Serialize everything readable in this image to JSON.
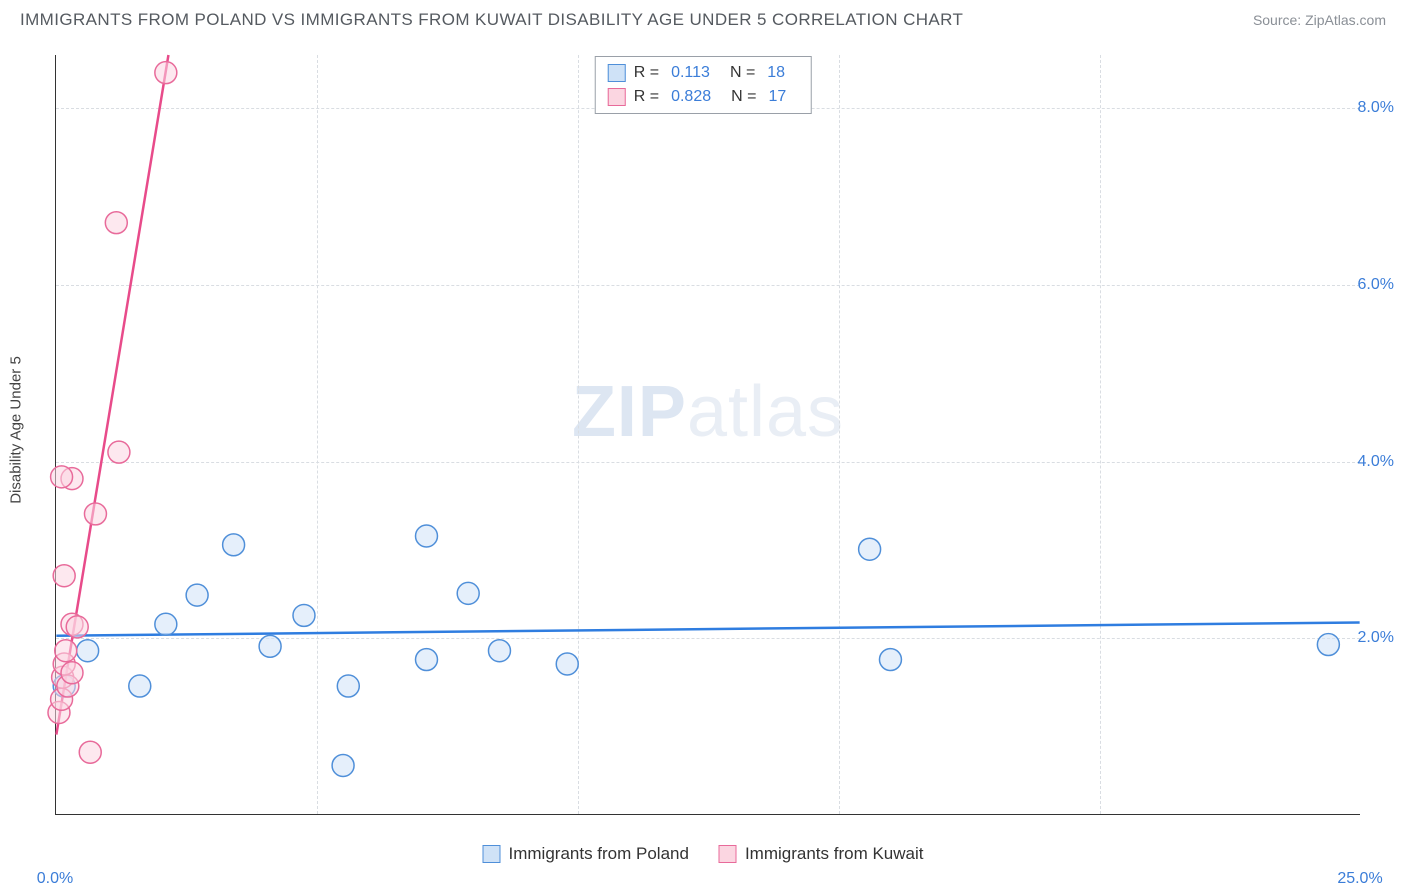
{
  "header": {
    "title": "IMMIGRANTS FROM POLAND VS IMMIGRANTS FROM KUWAIT DISABILITY AGE UNDER 5 CORRELATION CHART",
    "source": "Source: ZipAtlas.com"
  },
  "watermark": {
    "bold": "ZIP",
    "light": "atlas"
  },
  "chart": {
    "type": "scatter",
    "y_axis_label": "Disability Age Under 5",
    "xlim": [
      0,
      25
    ],
    "ylim": [
      0,
      8.6
    ],
    "x_ticks": [
      0.0,
      25.0
    ],
    "x_tick_labels": [
      "0.0%",
      "25.0%"
    ],
    "x_minor_ticks": [
      5,
      10,
      15,
      20
    ],
    "y_ticks": [
      2.0,
      4.0,
      6.0,
      8.0
    ],
    "y_tick_labels": [
      "2.0%",
      "4.0%",
      "6.0%",
      "8.0%"
    ],
    "grid_color": "#d9dde2",
    "background_color": "#ffffff",
    "marker_radius": 11,
    "marker_opacity": 0.55,
    "line_width": 2.5,
    "series": [
      {
        "name": "Immigrants from Poland",
        "color_fill": "#cfe2f7",
        "color_stroke": "#4f8fd9",
        "line_color": "#2f7de0",
        "R": "0.113",
        "N": "18",
        "trend": {
          "x1": 0,
          "y1": 2.02,
          "x2": 25,
          "y2": 2.17
        },
        "points": [
          {
            "x": 0.15,
            "y": 1.45
          },
          {
            "x": 0.6,
            "y": 1.85
          },
          {
            "x": 1.6,
            "y": 1.45
          },
          {
            "x": 2.1,
            "y": 2.15
          },
          {
            "x": 2.7,
            "y": 2.48
          },
          {
            "x": 3.4,
            "y": 3.05
          },
          {
            "x": 4.1,
            "y": 1.9
          },
          {
            "x": 4.75,
            "y": 2.25
          },
          {
            "x": 5.6,
            "y": 1.45
          },
          {
            "x": 5.5,
            "y": 0.55
          },
          {
            "x": 7.1,
            "y": 1.75
          },
          {
            "x": 7.1,
            "y": 3.15
          },
          {
            "x": 7.9,
            "y": 2.5
          },
          {
            "x": 8.5,
            "y": 1.85
          },
          {
            "x": 9.8,
            "y": 1.7
          },
          {
            "x": 15.6,
            "y": 3.0
          },
          {
            "x": 16.0,
            "y": 1.75
          },
          {
            "x": 24.4,
            "y": 1.92
          }
        ]
      },
      {
        "name": "Immigrants from Kuwait",
        "color_fill": "#fbd6e1",
        "color_stroke": "#e86a9a",
        "line_color": "#e84b8a",
        "R": "0.828",
        "N": "17",
        "trend": {
          "x1": 0.0,
          "y1": 0.9,
          "x2": 2.15,
          "y2": 8.6
        },
        "points": [
          {
            "x": 0.05,
            "y": 1.15
          },
          {
            "x": 0.1,
            "y": 1.3
          },
          {
            "x": 0.12,
            "y": 1.55
          },
          {
            "x": 0.15,
            "y": 1.7
          },
          {
            "x": 0.18,
            "y": 1.85
          },
          {
            "x": 0.22,
            "y": 1.45
          },
          {
            "x": 0.3,
            "y": 1.6
          },
          {
            "x": 0.3,
            "y": 2.15
          },
          {
            "x": 0.4,
            "y": 2.12
          },
          {
            "x": 0.15,
            "y": 2.7
          },
          {
            "x": 0.65,
            "y": 0.7
          },
          {
            "x": 0.75,
            "y": 3.4
          },
          {
            "x": 0.3,
            "y": 3.8
          },
          {
            "x": 0.1,
            "y": 3.82
          },
          {
            "x": 1.2,
            "y": 4.1
          },
          {
            "x": 1.15,
            "y": 6.7
          },
          {
            "x": 2.1,
            "y": 8.4
          }
        ]
      }
    ]
  },
  "legend_top": {
    "rows": [
      {
        "swatch": "blue",
        "R_label": "R =",
        "R_val": "0.113",
        "N_label": "N =",
        "N_val": "18"
      },
      {
        "swatch": "pink",
        "R_label": "R =",
        "R_val": "0.828",
        "N_label": "N =",
        "N_val": "17"
      }
    ]
  },
  "legend_bottom": {
    "items": [
      {
        "swatch": "blue",
        "label": "Immigrants from Poland"
      },
      {
        "swatch": "pink",
        "label": "Immigrants from Kuwait"
      }
    ]
  }
}
